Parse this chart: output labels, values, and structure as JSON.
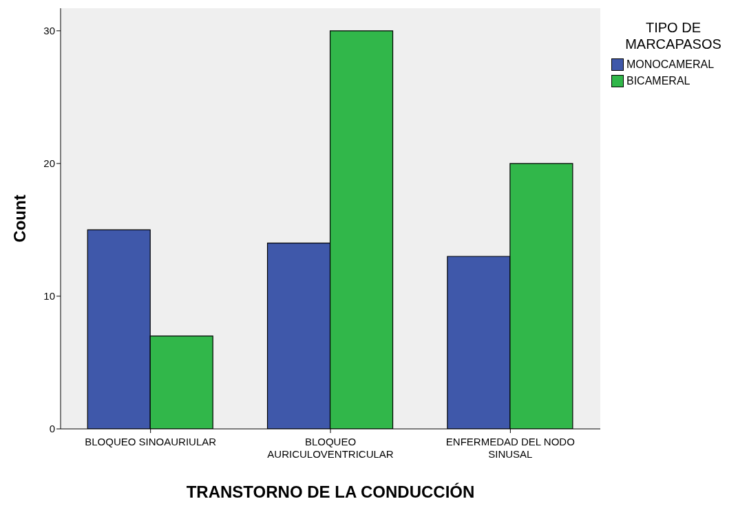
{
  "chart_data": {
    "type": "bar",
    "xlabel": "TRANSTORNO DE LA CONDUCCIÓN",
    "ylabel": "Count",
    "legend_title": "TIPO DE MARCAPASOS",
    "categories": [
      "BLOQUEO SINOAURIULAR",
      "BLOQUEO AURICULOVENTRICULAR",
      "ENFERMEDAD DEL NODO SINUSAL"
    ],
    "series": [
      {
        "name": "MONOCAMERAL",
        "color": "#3f58aa",
        "values": [
          15,
          14,
          13
        ]
      },
      {
        "name": "BICAMERAL",
        "color": "#31b74a",
        "values": [
          7,
          30,
          20
        ]
      }
    ],
    "ylim": [
      0,
      31.7
    ],
    "yticks": [
      0,
      10,
      20,
      30
    ],
    "grid": false,
    "legend": "top right"
  }
}
